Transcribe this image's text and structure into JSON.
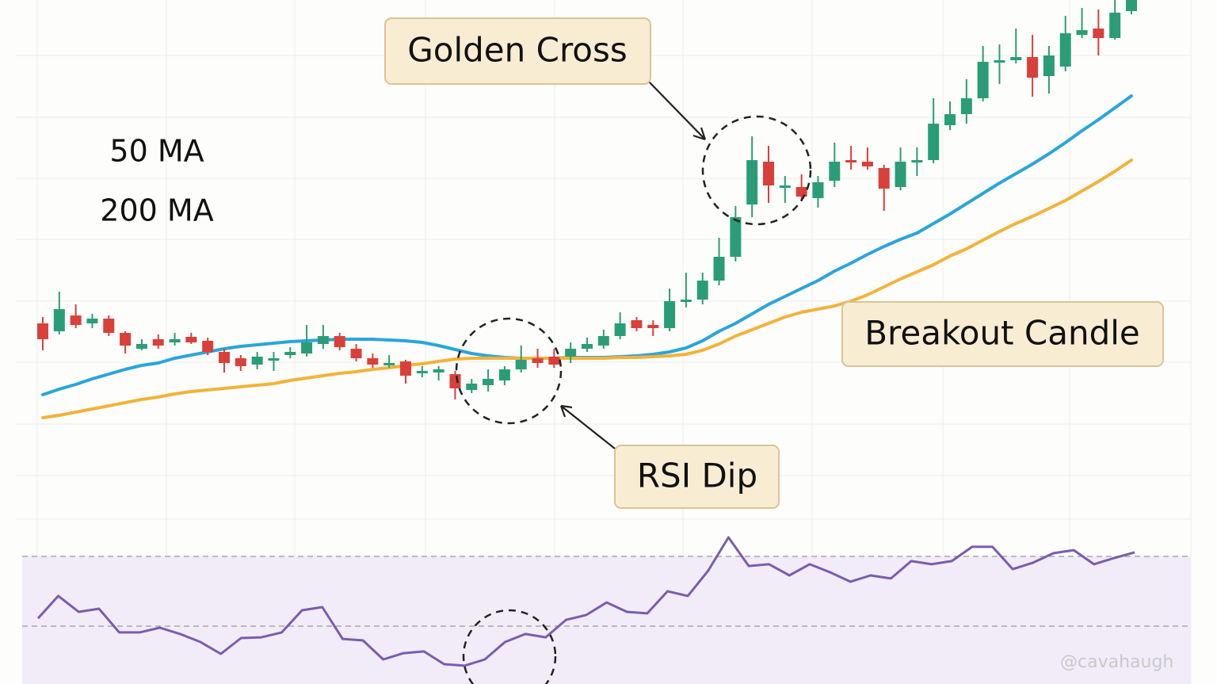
{
  "chart_data": [
    {
      "type": "candlestick",
      "ylim": [
        0,
        655
      ],
      "up_color": "#2a9d78",
      "down_color": "#d9403a",
      "candles": [
        {
          "o": 247,
          "c": 227,
          "h": 255,
          "l": 213
        },
        {
          "o": 237,
          "c": 265,
          "h": 287,
          "l": 233
        },
        {
          "o": 257,
          "c": 245,
          "h": 271,
          "l": 241
        },
        {
          "o": 247,
          "c": 253,
          "h": 259,
          "l": 241
        },
        {
          "o": 253,
          "c": 235,
          "h": 257,
          "l": 231
        },
        {
          "o": 235,
          "c": 219,
          "h": 237,
          "l": 209
        },
        {
          "o": 215,
          "c": 221,
          "h": 227,
          "l": 213
        },
        {
          "o": 227,
          "c": 219,
          "h": 233,
          "l": 215
        },
        {
          "o": 223,
          "c": 227,
          "h": 235,
          "l": 219
        },
        {
          "o": 230,
          "c": 223,
          "h": 235,
          "l": 221
        },
        {
          "o": 225,
          "c": 211,
          "h": 229,
          "l": 207
        },
        {
          "o": 211,
          "c": 197,
          "h": 215,
          "l": 185
        },
        {
          "o": 203,
          "c": 193,
          "h": 207,
          "l": 187
        },
        {
          "o": 195,
          "c": 205,
          "h": 211,
          "l": 189
        },
        {
          "o": 201,
          "c": 203,
          "h": 211,
          "l": 187
        },
        {
          "o": 207,
          "c": 211,
          "h": 217,
          "l": 203
        },
        {
          "o": 209,
          "c": 223,
          "h": 245,
          "l": 205
        },
        {
          "o": 221,
          "c": 231,
          "h": 245,
          "l": 215
        },
        {
          "o": 231,
          "c": 217,
          "h": 235,
          "l": 213
        },
        {
          "o": 215,
          "c": 203,
          "h": 221,
          "l": 199
        },
        {
          "o": 203,
          "c": 195,
          "h": 209,
          "l": 191
        },
        {
          "o": 195,
          "c": 197,
          "h": 207,
          "l": 191
        },
        {
          "o": 199,
          "c": 181,
          "h": 201,
          "l": 171
        },
        {
          "o": 185,
          "c": 187,
          "h": 193,
          "l": 179
        },
        {
          "o": 185,
          "c": 189,
          "h": 193,
          "l": 175
        },
        {
          "o": 183,
          "c": 165,
          "h": 187,
          "l": 151
        },
        {
          "o": 163,
          "c": 171,
          "h": 177,
          "l": 159
        },
        {
          "o": 169,
          "c": 177,
          "h": 189,
          "l": 161
        },
        {
          "o": 175,
          "c": 189,
          "h": 193,
          "l": 169
        },
        {
          "o": 189,
          "c": 201,
          "h": 219,
          "l": 185
        },
        {
          "o": 203,
          "c": 197,
          "h": 215,
          "l": 191
        },
        {
          "o": 205,
          "c": 195,
          "h": 215,
          "l": 191
        },
        {
          "o": 205,
          "c": 215,
          "h": 223,
          "l": 197
        },
        {
          "o": 215,
          "c": 221,
          "h": 229,
          "l": 211
        },
        {
          "o": 219,
          "c": 231,
          "h": 239,
          "l": 215
        },
        {
          "o": 231,
          "c": 247,
          "h": 261,
          "l": 227
        },
        {
          "o": 251,
          "c": 241,
          "h": 255,
          "l": 237
        },
        {
          "o": 245,
          "c": 241,
          "h": 251,
          "l": 231
        },
        {
          "o": 241,
          "c": 275,
          "h": 291,
          "l": 237
        },
        {
          "o": 275,
          "c": 277,
          "h": 311,
          "l": 267
        },
        {
          "o": 277,
          "c": 301,
          "h": 311,
          "l": 271
        },
        {
          "o": 301,
          "c": 331,
          "h": 355,
          "l": 295
        },
        {
          "o": 331,
          "c": 381,
          "h": 395,
          "l": 325
        },
        {
          "o": 397,
          "c": 453,
          "h": 483,
          "l": 381
        },
        {
          "o": 451,
          "c": 421,
          "h": 471,
          "l": 399
        },
        {
          "o": 419,
          "c": 421,
          "h": 433,
          "l": 399
        },
        {
          "o": 419,
          "c": 407,
          "h": 435,
          "l": 401
        },
        {
          "o": 405,
          "c": 425,
          "h": 433,
          "l": 393
        },
        {
          "o": 427,
          "c": 451,
          "h": 475,
          "l": 419
        },
        {
          "o": 453,
          "c": 451,
          "h": 471,
          "l": 441
        },
        {
          "o": 451,
          "c": 445,
          "h": 469,
          "l": 441
        },
        {
          "o": 443,
          "c": 417,
          "h": 447,
          "l": 389
        },
        {
          "o": 419,
          "c": 451,
          "h": 469,
          "l": 415
        },
        {
          "o": 451,
          "c": 453,
          "h": 469,
          "l": 433
        },
        {
          "o": 453,
          "c": 499,
          "h": 531,
          "l": 449
        },
        {
          "o": 497,
          "c": 511,
          "h": 527,
          "l": 491
        },
        {
          "o": 511,
          "c": 531,
          "h": 555,
          "l": 499
        },
        {
          "o": 531,
          "c": 577,
          "h": 597,
          "l": 527
        },
        {
          "o": 577,
          "c": 579,
          "h": 599,
          "l": 549
        },
        {
          "o": 579,
          "c": 583,
          "h": 619,
          "l": 575
        },
        {
          "o": 583,
          "c": 557,
          "h": 611,
          "l": 533
        },
        {
          "o": 559,
          "c": 585,
          "h": 597,
          "l": 537
        },
        {
          "o": 571,
          "c": 613,
          "h": 635,
          "l": 565
        },
        {
          "o": 611,
          "c": 617,
          "h": 645,
          "l": 607
        },
        {
          "o": 619,
          "c": 607,
          "h": 643,
          "l": 585
        },
        {
          "o": 607,
          "c": 639,
          "h": 655,
          "l": 605
        },
        {
          "o": 641,
          "c": 655,
          "h": 655,
          "l": 637
        }
      ],
      "series": [
        {
          "name": "50 MA",
          "color": "#2aa5dc",
          "values": [
            157,
            164,
            170,
            177,
            183,
            189,
            194,
            197,
            203,
            207,
            211,
            215,
            218,
            220,
            222,
            224,
            225,
            226,
            227,
            227,
            227,
            226,
            225,
            223,
            219,
            214,
            209,
            206,
            204,
            203,
            203,
            203,
            204,
            204,
            204,
            205,
            206,
            208,
            211,
            216,
            225,
            237,
            247,
            259,
            271,
            281,
            291,
            301,
            313,
            323,
            334,
            344,
            353,
            361,
            373,
            385,
            398,
            411,
            424,
            436,
            448,
            461,
            475,
            490,
            504,
            519,
            534
          ]
        },
        {
          "name": "200 MA",
          "color": "#f2b33a",
          "values": [
            128,
            131,
            135,
            139,
            143,
            147,
            151,
            154,
            158,
            161,
            163,
            165,
            167,
            169,
            171,
            175,
            178,
            181,
            184,
            186,
            189,
            191,
            194,
            196,
            199,
            202,
            203,
            203,
            203,
            203,
            203,
            203,
            203,
            203,
            203,
            204,
            204,
            205,
            206,
            208,
            213,
            221,
            231,
            239,
            247,
            255,
            261,
            265,
            269,
            275,
            283,
            293,
            303,
            312,
            321,
            332,
            341,
            352,
            363,
            373,
            382,
            392,
            402,
            414,
            426,
            439,
            453
          ]
        }
      ],
      "annotations": [
        "Golden Cross",
        "RSI Dip",
        "Breakout Candle"
      ],
      "watermark": "@cavahaugh"
    },
    {
      "type": "line",
      "ylim": [
        0,
        100
      ],
      "levels": [
        70,
        30
      ],
      "series": [
        {
          "color": "#7a5cae",
          "values": [
            34.5,
            47.3,
            38.2,
            40,
            26.4,
            26.4,
            29.1,
            25.5,
            20.9,
            14.1,
            23.2,
            23.6,
            26.4,
            39.1,
            40.9,
            22.7,
            21.8,
            10.9,
            14.5,
            15.5,
            8.2,
            7.3,
            10.9,
            20.9,
            25.5,
            23.6,
            33.6,
            36.4,
            43.6,
            38.2,
            37.3,
            50,
            47.3,
            61.8,
            80.9,
            64.5,
            65.5,
            59.1,
            65.5,
            60.9,
            55.5,
            59.1,
            57.3,
            67.3,
            65.5,
            67.3,
            75.5,
            75.5,
            62.7,
            66.4,
            71.8,
            73.6,
            65.5,
            69.1,
            72.3
          ]
        }
      ]
    }
  ]
}
